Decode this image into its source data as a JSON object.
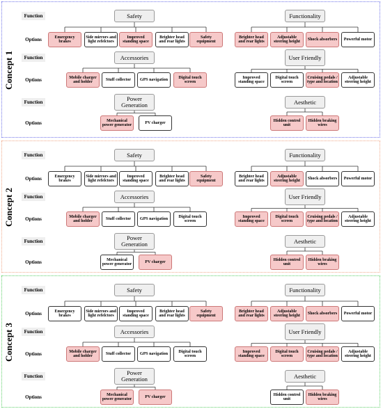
{
  "concepts": [
    {
      "label": "Concept 1",
      "border_color": "#6f73e8",
      "rows": [
        "Function",
        "Options",
        "Function",
        "Options",
        "Function",
        "Options"
      ],
      "groups": [
        {
          "name": "Safety",
          "options": [
            {
              "text": "Emergency brakes",
              "selected": true
            },
            {
              "text": "Side mirrors and light refelctors",
              "selected": false
            },
            {
              "text": "Improved standing space",
              "selected": true
            },
            {
              "text": "Brighter head and rear lights",
              "selected": false
            },
            {
              "text": "Safety equipment",
              "selected": true
            }
          ]
        },
        {
          "name": "Functionality",
          "options": [
            {
              "text": "Brighter head and rear lights",
              "selected": true
            },
            {
              "text": "Adjustable steering height",
              "selected": true
            },
            {
              "text": "Shock absorbers",
              "selected": true
            },
            {
              "text": "Powerful motor",
              "selected": false
            }
          ]
        },
        {
          "name": "Accessories",
          "options": [
            {
              "text": "Mobile charger and holder",
              "selected": true
            },
            {
              "text": "Stuff collector",
              "selected": false
            },
            {
              "text": "GPS navigation",
              "selected": false
            },
            {
              "text": "Digital touch screen",
              "selected": true
            }
          ]
        },
        {
          "name": "User Friendly",
          "options": [
            {
              "text": "Improved standing space",
              "selected": false
            },
            {
              "text": "Digital touch screen",
              "selected": false
            },
            {
              "text": "Cruising pedals / type and location",
              "selected": true
            },
            {
              "text": "Adjustable steering height",
              "selected": false
            }
          ]
        },
        {
          "name": "Power Generation",
          "options": [
            {
              "text": "Mechanical power generator",
              "selected": true
            },
            {
              "text": "PV charger",
              "selected": false
            }
          ]
        },
        {
          "name": "Aesthetic",
          "options": [
            {
              "text": "Hidden control unit",
              "selected": true
            },
            {
              "text": "Hidden braking wires",
              "selected": true
            }
          ]
        }
      ]
    },
    {
      "label": "Concept 2",
      "border_color": "#f0a98a",
      "rows": [
        "Function",
        "Options",
        "Function",
        "Options",
        "Function",
        "Options"
      ],
      "groups": [
        {
          "name": "Safety",
          "options": [
            {
              "text": "Emergency brakes",
              "selected": false
            },
            {
              "text": "Side mirrors and light refelctors",
              "selected": false
            },
            {
              "text": "Improved standing space",
              "selected": false
            },
            {
              "text": "Brighter head and rear lights",
              "selected": false
            },
            {
              "text": "Safety equipment",
              "selected": true
            }
          ]
        },
        {
          "name": "Functionality",
          "options": [
            {
              "text": "Brighter head and rear lights",
              "selected": false
            },
            {
              "text": "Adjustable steering height",
              "selected": true
            },
            {
              "text": "Shock absorbers",
              "selected": false
            },
            {
              "text": "Powerful motor",
              "selected": false
            }
          ]
        },
        {
          "name": "Accessories",
          "options": [
            {
              "text": "Mobile charger and holder",
              "selected": true
            },
            {
              "text": "Stuff collector",
              "selected": false
            },
            {
              "text": "GPS navigation",
              "selected": false
            },
            {
              "text": "Digital touch screen",
              "selected": false
            }
          ]
        },
        {
          "name": "User Friendly",
          "options": [
            {
              "text": "Improved standing space",
              "selected": true
            },
            {
              "text": "Digital touch screen",
              "selected": true
            },
            {
              "text": "Cruising pedals / type and location",
              "selected": true
            },
            {
              "text": "Adjustable steering height",
              "selected": false
            }
          ]
        },
        {
          "name": "Power Generation",
          "options": [
            {
              "text": "Mechanical power generator",
              "selected": false
            },
            {
              "text": "PV charger",
              "selected": true
            }
          ]
        },
        {
          "name": "Aesthetic",
          "options": [
            {
              "text": "Hidden control unit",
              "selected": true
            },
            {
              "text": "Hidden braking wires",
              "selected": true
            }
          ]
        }
      ]
    },
    {
      "label": "Concept 3",
      "border_color": "#5fd06a",
      "rows": [
        "Function",
        "Options",
        "Function",
        "Options",
        "Function",
        "Options"
      ],
      "groups": [
        {
          "name": "Safety",
          "options": [
            {
              "text": "Emergency brakes",
              "selected": false
            },
            {
              "text": "Side mirrors and light refelctors",
              "selected": false
            },
            {
              "text": "Improved standing space",
              "selected": false
            },
            {
              "text": "Brighter head and rear lights",
              "selected": false
            },
            {
              "text": "Safety equipment",
              "selected": true
            }
          ]
        },
        {
          "name": "Functionality",
          "options": [
            {
              "text": "Brighter head and rear lights",
              "selected": true
            },
            {
              "text": "Adjustable steering height",
              "selected": true
            },
            {
              "text": "Shock absorbers",
              "selected": true
            },
            {
              "text": "Powerful motor",
              "selected": false
            }
          ]
        },
        {
          "name": "Accessories",
          "options": [
            {
              "text": "Mobile charger and holder",
              "selected": true
            },
            {
              "text": "Stuff collector",
              "selected": false
            },
            {
              "text": "GPS navigation",
              "selected": false
            },
            {
              "text": "Digital touch screen",
              "selected": false
            }
          ]
        },
        {
          "name": "User Friendly",
          "options": [
            {
              "text": "Improved standing space",
              "selected": true
            },
            {
              "text": "Digital touch screen",
              "selected": true
            },
            {
              "text": "Cruising pedals / type and location",
              "selected": true
            },
            {
              "text": "Adjustable steering height",
              "selected": false
            }
          ]
        },
        {
          "name": "Power Generation",
          "options": [
            {
              "text": "Mechanical power generator",
              "selected": true
            },
            {
              "text": "PV charger",
              "selected": true
            }
          ]
        },
        {
          "name": "Aesthetic",
          "options": [
            {
              "text": "Hidden control unit",
              "selected": false
            },
            {
              "text": "Hidden braking wires",
              "selected": true
            }
          ]
        }
      ]
    }
  ]
}
